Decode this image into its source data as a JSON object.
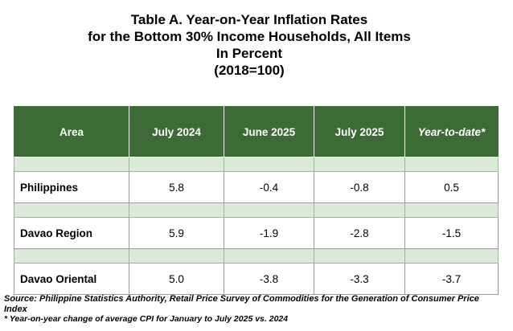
{
  "title": {
    "line1": "Table A. Year-on-Year Inflation Rates",
    "line2": "for the Bottom 30% Income Households, All Items",
    "line3": "In Percent",
    "line4": "(2018=100)"
  },
  "table": {
    "headers": [
      "Area",
      "July 2024",
      "June 2025",
      "July 2025",
      "Year-to-date*"
    ],
    "rows": [
      {
        "area": "Philippines",
        "values": [
          "5.8",
          "-0.4",
          "-0.8",
          "0.5"
        ]
      },
      {
        "area": "Davao Region",
        "values": [
          "5.9",
          "-1.9",
          "-2.8",
          "-1.5"
        ]
      },
      {
        "area": "Davao Oriental",
        "values": [
          "5.0",
          "-3.8",
          "-3.3",
          "-3.7"
        ]
      }
    ]
  },
  "notes": {
    "source": "Source: Philippine Statistics Authority, Retail Price Survey of Commodities for the Generation of Consumer Price Index",
    "footnote": "* Year-on-year change of average CPI for January to July 2025 vs. 2024"
  },
  "colors": {
    "header_bg": "#3d6b35",
    "spacer_bg": "#dcebd9"
  }
}
